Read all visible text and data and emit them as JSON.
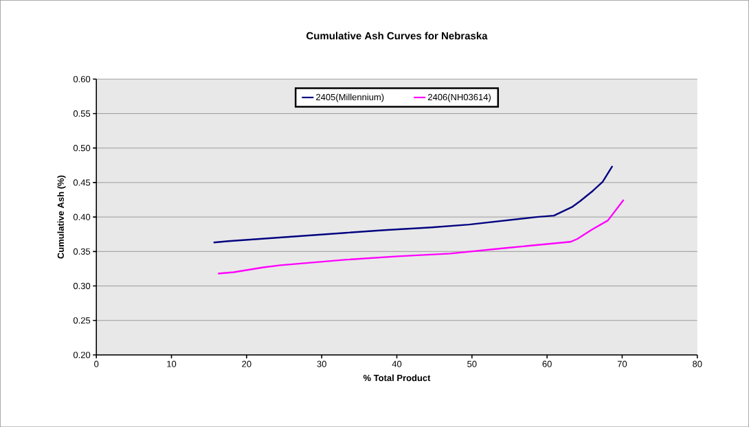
{
  "chart_data": {
    "type": "line",
    "title": "Cumulative Ash Curves for Nebraska",
    "xlabel": "% Total Product",
    "ylabel": "Cumulative Ash (%)",
    "xlim": [
      0,
      80
    ],
    "xticks": [
      0,
      10,
      20,
      30,
      40,
      50,
      60,
      70,
      80
    ],
    "ylim": [
      0.2,
      0.6
    ],
    "yticks": [
      {
        "value": 0.2,
        "label": "0.20"
      },
      {
        "value": 0.25,
        "label": "0.25"
      },
      {
        "value": 0.3,
        "label": "0.30"
      },
      {
        "value": 0.35,
        "label": "0.35"
      },
      {
        "value": 0.4,
        "label": "0.40"
      },
      {
        "value": 0.45,
        "label": "0.45"
      },
      {
        "value": 0.5,
        "label": "0.50"
      },
      {
        "value": 0.55,
        "label": "0.55"
      },
      {
        "value": 0.6,
        "label": "0.60"
      }
    ],
    "grid": "y",
    "legend": "top",
    "marker": "none",
    "line_style": "solid",
    "series": [
      {
        "name": "2405(Millennium)",
        "color": "#000080",
        "x": [
          15.6,
          17.6,
          33.1,
          38.3,
          44.6,
          49.6,
          58.6,
          60.9,
          63.4,
          64.4,
          66.1,
          67.4,
          68.7
        ],
        "values": [
          0.363,
          0.365,
          0.377,
          0.381,
          0.385,
          0.389,
          0.4,
          0.402,
          0.415,
          0.423,
          0.438,
          0.451,
          0.474
        ]
      },
      {
        "name": "2406(NH03614)",
        "color": "#ff00ff",
        "x": [
          16.2,
          18.3,
          22.2,
          24.5,
          33.1,
          40.1,
          47.1,
          54.5,
          63.1,
          64.0,
          66.0,
          68.1,
          70.2
        ],
        "values": [
          0.318,
          0.32,
          0.327,
          0.33,
          0.338,
          0.343,
          0.347,
          0.355,
          0.364,
          0.368,
          0.382,
          0.395,
          0.425
        ]
      }
    ]
  }
}
